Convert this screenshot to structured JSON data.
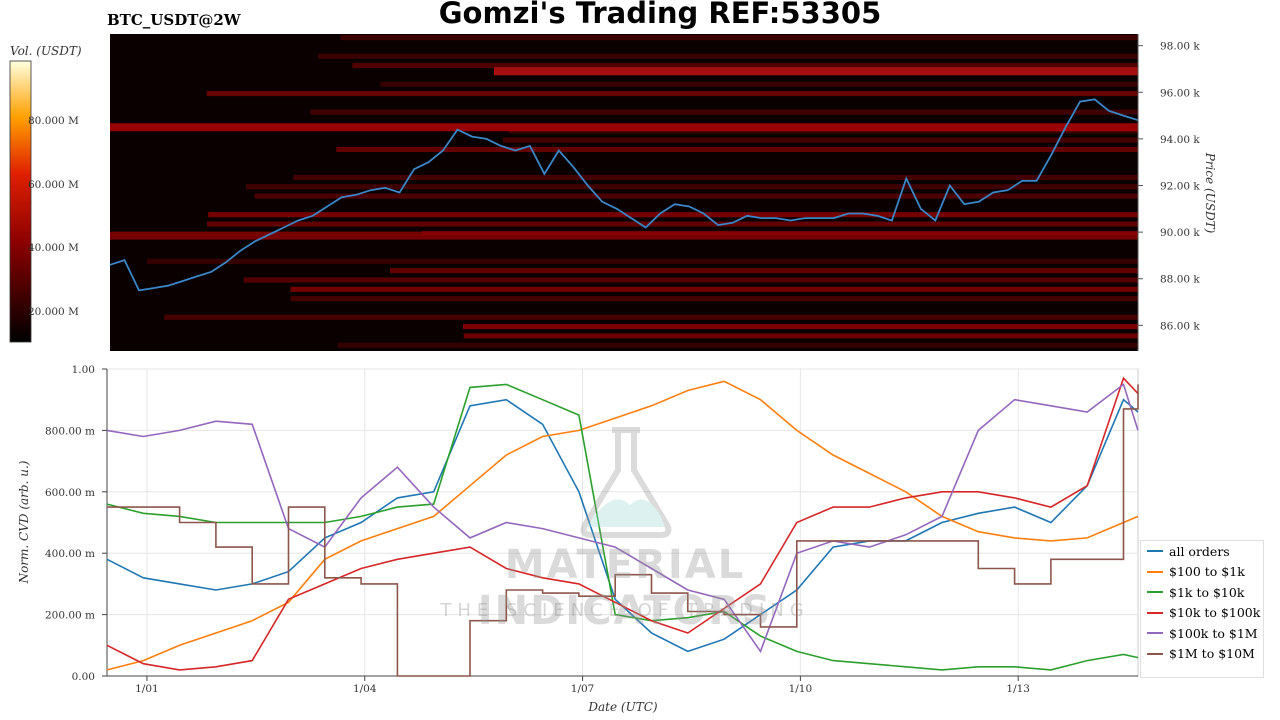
{
  "header": {
    "title": "Gomzi's Trading REF:53305",
    "pair": "BTC_USDT@2W"
  },
  "watermark": {
    "brand": "MATERIAL INDICATORS",
    "tagline": "THE SCIENCE OF TRADING"
  },
  "colors": {
    "price_line": "#3a86c8",
    "heatmap_bg": "#0a0000",
    "all_orders": "#1f77b4",
    "usd100_1k": "#ff7f0e",
    "usd1k_10k": "#2ca02c",
    "usd10k_100k": "#d62728",
    "usd100k_1m": "#9467bd",
    "usd1m_10m": "#8c564b"
  },
  "chart_data": [
    {
      "type": "heatmap",
      "title": "BTC_USDT@2W",
      "colorbar_label": "Vol. (USDT)",
      "colorbar_ticks": [
        "20.000 M",
        "40.000 M",
        "60.000 M",
        "80.000 M"
      ],
      "ylabel": "Price (USDT)",
      "y_ticks": [
        "86.00 k",
        "88.00 k",
        "90.00 k",
        "92.00 k",
        "94.00 k",
        "96.00 k",
        "98.00 k"
      ],
      "ylim": [
        84900,
        98500
      ],
      "price_series": {
        "x": [
          0,
          0.2,
          0.4,
          0.6,
          0.8,
          1.0,
          1.2,
          1.4,
          1.6,
          1.8,
          2.0,
          2.2,
          2.4,
          2.6,
          2.8,
          3.0,
          3.2,
          3.4,
          3.6,
          3.8,
          4.0,
          4.2,
          4.4,
          4.6,
          4.8,
          5.0,
          5.2,
          5.4,
          5.6,
          5.8,
          6.0,
          6.2,
          6.4,
          6.6,
          6.8,
          7.0,
          7.2,
          7.4,
          7.6,
          7.8,
          8.0,
          8.2,
          8.4,
          8.6,
          8.8,
          9.0,
          9.2,
          9.4,
          9.6,
          9.8,
          10.0,
          10.2,
          10.4,
          10.6,
          10.8,
          11.0,
          11.2,
          11.4,
          11.6,
          11.8,
          12.0,
          12.2,
          12.4,
          12.6,
          12.8,
          13.0,
          13.2,
          13.4,
          13.6,
          13.8,
          14.0,
          14.2
        ],
        "y": [
          88600,
          88800,
          87500,
          87600,
          87700,
          87900,
          88100,
          88300,
          88700,
          89200,
          89600,
          89900,
          90200,
          90500,
          90700,
          91100,
          91500,
          91600,
          91800,
          91900,
          91700,
          92700,
          93000,
          93500,
          94400,
          94100,
          94000,
          93700,
          93500,
          93700,
          92500,
          93500,
          92800,
          92000,
          91300,
          91000,
          90600,
          90200,
          90800,
          91200,
          91100,
          90800,
          90300,
          90400,
          90700,
          90600,
          90600,
          90500,
          90600,
          90600,
          90600,
          90800,
          90800,
          90700,
          90500,
          92300,
          91000,
          90500,
          92000,
          91200,
          91300,
          91700,
          91800,
          92200,
          92200,
          93300,
          94500,
          95600,
          95700,
          95200,
          95000,
          94800
        ]
      }
    },
    {
      "type": "line",
      "xlabel": "Date (UTC)",
      "ylabel": "Norm. CVD (arb. u.)",
      "x_ticks": [
        "1/01",
        "1/04",
        "1/07",
        "1/10",
        "1/13"
      ],
      "y_ticks": [
        "0.00",
        "200.00 m",
        "400.00 m",
        "600.00 m",
        "800.00 m",
        "1.00"
      ],
      "ylim": [
        0,
        1
      ],
      "x": [
        0,
        0.5,
        1.0,
        1.5,
        2.0,
        2.5,
        3.0,
        3.5,
        4.0,
        4.5,
        5.0,
        5.5,
        6.0,
        6.5,
        7.0,
        7.5,
        8.0,
        8.5,
        9.0,
        9.5,
        10.0,
        10.5,
        11.0,
        11.5,
        12.0,
        12.5,
        13.0,
        13.5,
        14.0,
        14.2
      ],
      "series": [
        {
          "name": "all orders",
          "values": [
            0.38,
            0.32,
            0.3,
            0.28,
            0.3,
            0.34,
            0.45,
            0.5,
            0.58,
            0.6,
            0.88,
            0.9,
            0.82,
            0.6,
            0.25,
            0.14,
            0.08,
            0.12,
            0.2,
            0.28,
            0.42,
            0.44,
            0.44,
            0.5,
            0.53,
            0.55,
            0.5,
            0.62,
            0.9,
            0.86
          ]
        },
        {
          "name": "$100 to $1k",
          "values": [
            0.02,
            0.05,
            0.1,
            0.14,
            0.18,
            0.24,
            0.38,
            0.44,
            0.48,
            0.52,
            0.62,
            0.72,
            0.78,
            0.8,
            0.84,
            0.88,
            0.93,
            0.96,
            0.9,
            0.8,
            0.72,
            0.66,
            0.6,
            0.52,
            0.47,
            0.45,
            0.44,
            0.45,
            0.5,
            0.52
          ]
        },
        {
          "name": "$1k to $10k",
          "values": [
            0.56,
            0.53,
            0.52,
            0.5,
            0.5,
            0.5,
            0.5,
            0.52,
            0.55,
            0.56,
            0.94,
            0.95,
            0.9,
            0.85,
            0.2,
            0.18,
            0.19,
            0.21,
            0.13,
            0.08,
            0.05,
            0.04,
            0.03,
            0.02,
            0.03,
            0.03,
            0.02,
            0.05,
            0.07,
            0.06
          ]
        },
        {
          "name": "$10k to $100k",
          "values": [
            0.1,
            0.04,
            0.02,
            0.03,
            0.05,
            0.25,
            0.3,
            0.35,
            0.38,
            0.4,
            0.42,
            0.35,
            0.32,
            0.3,
            0.24,
            0.18,
            0.14,
            0.22,
            0.3,
            0.5,
            0.55,
            0.55,
            0.58,
            0.6,
            0.6,
            0.58,
            0.55,
            0.62,
            0.97,
            0.92
          ]
        },
        {
          "name": "$100k to $1M",
          "values": [
            0.8,
            0.78,
            0.8,
            0.83,
            0.82,
            0.48,
            0.42,
            0.58,
            0.68,
            0.55,
            0.45,
            0.5,
            0.48,
            0.45,
            0.42,
            0.35,
            0.28,
            0.25,
            0.08,
            0.4,
            0.44,
            0.42,
            0.46,
            0.52,
            0.8,
            0.9,
            0.88,
            0.86,
            0.95,
            0.8
          ]
        },
        {
          "name": "$1M to $10M",
          "values": [
            0.55,
            0.55,
            0.5,
            0.42,
            0.3,
            0.55,
            0.32,
            0.3,
            0.0,
            0.0,
            0.18,
            0.28,
            0.27,
            0.26,
            0.33,
            0.27,
            0.21,
            0.2,
            0.16,
            0.44,
            0.44,
            0.44,
            0.44,
            0.44,
            0.35,
            0.3,
            0.38,
            0.38,
            0.87,
            0.95
          ]
        }
      ]
    }
  ]
}
